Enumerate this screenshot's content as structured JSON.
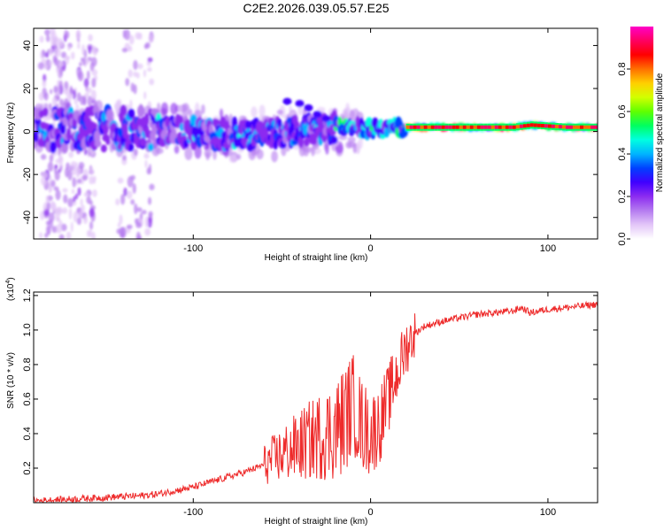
{
  "title": "C2E2.2026.039.05.57.E25",
  "chart_data": [
    {
      "type": "heatmap",
      "xlabel": "Height of straight line (km)",
      "ylabel": "Frequency (Hz)",
      "xlim": [
        -190,
        128
      ],
      "ylim": [
        -50,
        48
      ],
      "xticks": [
        -100,
        0,
        100
      ],
      "yticks": [
        -40,
        -20,
        0,
        20,
        40
      ],
      "colorbar": {
        "label": "Normalized spectral amplitude",
        "range": [
          0.0,
          1.0
        ],
        "ticks": [
          "0.0",
          "0.2",
          "0.4",
          "0.6",
          "0.8"
        ],
        "tick_values": [
          0.0,
          0.2,
          0.4,
          0.6,
          0.8
        ],
        "colors": [
          "#ffffff",
          "#e3c6f8",
          "#b57cf0",
          "#8c2cf0",
          "#4000ff",
          "#0040ff",
          "#00b4ff",
          "#00ffe0",
          "#00ff60",
          "#60ff00",
          "#d2ff00",
          "#ffd000",
          "#ff7000",
          "#ff0000",
          "#ff0060",
          "#ff00c8"
        ]
      },
      "ridge": [
        {
          "x": -190,
          "y": 1
        },
        {
          "x": -150,
          "y": 1
        },
        {
          "x": -120,
          "y": 1
        },
        {
          "x": -100,
          "y": 0
        },
        {
          "x": -80,
          "y": -2
        },
        {
          "x": -60,
          "y": -1
        },
        {
          "x": -40,
          "y": 0
        },
        {
          "x": -20,
          "y": 2
        },
        {
          "x": 0,
          "y": 1
        },
        {
          "x": 20,
          "y": 2
        },
        {
          "x": 60,
          "y": 2
        },
        {
          "x": 80,
          "y": 2
        },
        {
          "x": 90,
          "y": 3
        },
        {
          "x": 110,
          "y": 2
        },
        {
          "x": 128,
          "y": 2
        }
      ],
      "branch": [
        {
          "x": -47,
          "y": 14
        },
        {
          "x": -40,
          "y": 13
        },
        {
          "x": -35,
          "y": 11
        },
        {
          "x": -30,
          "y": 8
        },
        {
          "x": -25,
          "y": 6
        }
      ]
    },
    {
      "type": "line",
      "xlabel": "Height of straight line (km)",
      "ylabel": "SNR (10 * v/v)",
      "y_multiplier": "(x10",
      "y_multiplier_exp": "4",
      "y_multiplier_close": ")",
      "xlim": [
        -190,
        128
      ],
      "ylim": [
        0,
        1.22
      ],
      "xticks": [
        -100,
        0,
        100
      ],
      "yticks": [
        "0.2",
        "0.4",
        "0.6",
        "0.8",
        "1.0",
        "1.2"
      ],
      "ytick_values": [
        0.2,
        0.4,
        0.6,
        0.8,
        1.0,
        1.2
      ],
      "line_color": "#ee2b2b",
      "series": [
        {
          "name": "SNR",
          "x": [
            -190,
            -170,
            -150,
            -130,
            -120,
            -110,
            -100,
            -90,
            -80,
            -70,
            -60,
            -50,
            -40,
            -30,
            -20,
            -15,
            -10,
            -5,
            0,
            5,
            10,
            15,
            20,
            25,
            30,
            40,
            50,
            60,
            70,
            80,
            85,
            90,
            100,
            110,
            120,
            128
          ],
          "y": [
            0.01,
            0.02,
            0.03,
            0.04,
            0.05,
            0.07,
            0.09,
            0.12,
            0.15,
            0.18,
            0.22,
            0.28,
            0.33,
            0.38,
            0.42,
            0.48,
            0.58,
            0.45,
            0.4,
            0.45,
            0.6,
            0.75,
            0.9,
            0.98,
            1.02,
            1.05,
            1.07,
            1.09,
            1.1,
            1.11,
            1.13,
            1.1,
            1.12,
            1.13,
            1.14,
            1.15
          ]
        }
      ]
    }
  ]
}
